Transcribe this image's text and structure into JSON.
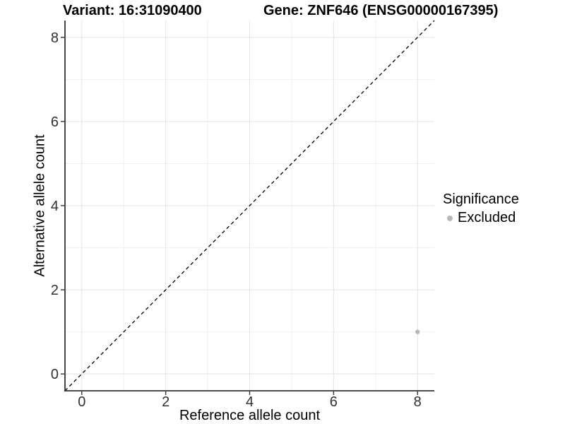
{
  "titles": {
    "variant": "Variant: 16:31090400",
    "gene": "Gene: ZNF646 (ENSG00000167395)"
  },
  "legend": {
    "title": "Significance",
    "items": [
      {
        "label": "Excluded",
        "color": "#b8b8b8"
      }
    ]
  },
  "chart_data": {
    "type": "scatter",
    "title": "Variant: 16:31090400   Gene: ZNF646 (ENSG00000167395)",
    "xlabel": "Reference allele count",
    "ylabel": "Alternative allele count",
    "xlim": [
      -0.4,
      8.4
    ],
    "ylim": [
      -0.4,
      8.4
    ],
    "x_ticks": [
      0,
      2,
      4,
      6,
      8
    ],
    "y_ticks": [
      0,
      2,
      4,
      6,
      8
    ],
    "x_minor_ticks": [
      1,
      3,
      5,
      7
    ],
    "y_minor_ticks": [
      1,
      3,
      5,
      7
    ],
    "grid": true,
    "legend_position": "right",
    "series": [
      {
        "name": "Excluded",
        "color": "#b8b8b8",
        "points": [
          {
            "x": 8,
            "y": 1
          }
        ]
      }
    ],
    "reference_line": {
      "type": "identity",
      "from": [
        -0.4,
        -0.4
      ],
      "to": [
        8.4,
        8.4
      ],
      "style": "dashed",
      "color": "#000000"
    },
    "colors": {
      "grid_major": "#e3e3e3",
      "grid_minor": "#f1f1f1",
      "axis_line": "#333333",
      "tick_text": "#303030",
      "background": "#ffffff"
    }
  }
}
